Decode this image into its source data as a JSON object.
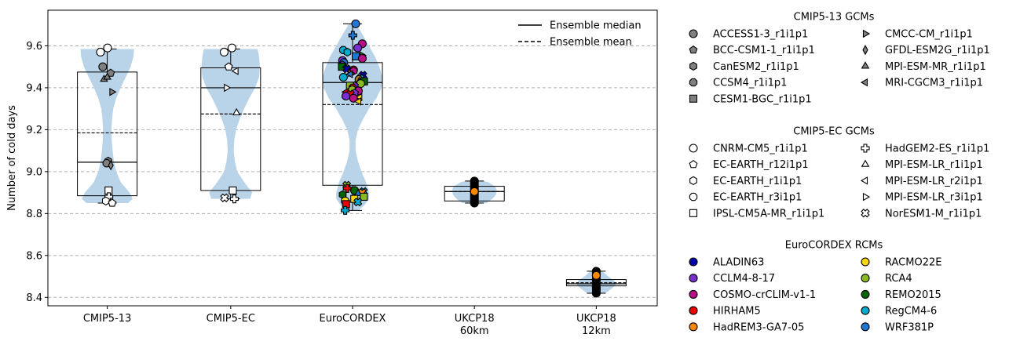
{
  "chart_data": {
    "type": "violin_box_scatter",
    "ylabel": "Number of cold days",
    "ylim": [
      8.36,
      9.77
    ],
    "yticks": [
      8.4,
      8.6,
      8.8,
      9.0,
      9.2,
      9.4,
      9.6
    ],
    "ytick_labels": [
      "8.4",
      "8.6",
      "8.8",
      "9.0",
      "9.2",
      "9.4",
      "9.6"
    ],
    "grid": "y-dashed",
    "categories": [
      "CMIP5-13",
      "CMIP5-EC",
      "EuroCORDEX",
      "UKCP18\n60km",
      "UKCP18\n12km"
    ],
    "violin_color": "#b9d4e8",
    "boxes": [
      {
        "whisker_low": 8.85,
        "q1": 8.885,
        "median": 9.045,
        "mean": 9.185,
        "q3": 9.475,
        "whisker_high": 9.585
      },
      {
        "whisker_low": 8.87,
        "q1": 8.91,
        "median": 9.4,
        "mean": 9.275,
        "q3": 9.495,
        "whisker_high": 9.585
      },
      {
        "whisker_low": 8.815,
        "q1": 8.935,
        "median": 9.425,
        "mean": 9.32,
        "q3": 9.52,
        "whisker_high": 9.705
      },
      {
        "whisker_low": 8.85,
        "q1": 8.86,
        "median": 8.905,
        "mean": 8.905,
        "q3": 8.93,
        "whisker_high": 8.955
      },
      {
        "whisker_low": 8.42,
        "q1": 8.455,
        "median": 8.465,
        "mean": 8.47,
        "q3": 8.485,
        "whisker_high": 8.525
      }
    ],
    "violins": [
      {
        "profile": [
          [
            8.85,
            0.7
          ],
          [
            8.87,
            0.85
          ],
          [
            8.9,
            0.75
          ],
          [
            8.95,
            0.45
          ],
          [
            9.0,
            0.3
          ],
          [
            9.05,
            0.22
          ],
          [
            9.1,
            0.18
          ],
          [
            9.15,
            0.15
          ],
          [
            9.2,
            0.14
          ],
          [
            9.25,
            0.16
          ],
          [
            9.3,
            0.2
          ],
          [
            9.35,
            0.3
          ],
          [
            9.4,
            0.45
          ],
          [
            9.45,
            0.62
          ],
          [
            9.5,
            0.78
          ],
          [
            9.55,
            0.88
          ],
          [
            9.585,
            0.9
          ]
        ]
      },
      {
        "profile": [
          [
            8.87,
            0.65
          ],
          [
            8.9,
            0.72
          ],
          [
            8.95,
            0.45
          ],
          [
            9.0,
            0.22
          ],
          [
            9.05,
            0.14
          ],
          [
            9.1,
            0.1
          ],
          [
            9.15,
            0.12
          ],
          [
            9.2,
            0.18
          ],
          [
            9.25,
            0.3
          ],
          [
            9.3,
            0.45
          ],
          [
            9.35,
            0.62
          ],
          [
            9.4,
            0.82
          ],
          [
            9.45,
            0.95
          ],
          [
            9.5,
            0.98
          ],
          [
            9.55,
            0.95
          ],
          [
            9.585,
            0.9
          ]
        ]
      },
      {
        "profile": [
          [
            8.815,
            0.2
          ],
          [
            8.84,
            0.4
          ],
          [
            8.87,
            0.55
          ],
          [
            8.9,
            0.55
          ],
          [
            8.95,
            0.45
          ],
          [
            9.0,
            0.3
          ],
          [
            9.05,
            0.18
          ],
          [
            9.1,
            0.1
          ],
          [
            9.15,
            0.1
          ],
          [
            9.2,
            0.18
          ],
          [
            9.25,
            0.35
          ],
          [
            9.3,
            0.55
          ],
          [
            9.35,
            0.8
          ],
          [
            9.4,
            0.97
          ],
          [
            9.45,
            1.0
          ],
          [
            9.5,
            0.9
          ],
          [
            9.55,
            0.75
          ],
          [
            9.6,
            0.55
          ],
          [
            9.65,
            0.35
          ],
          [
            9.705,
            0.12
          ]
        ]
      },
      {
        "profile": [
          [
            8.85,
            0.4
          ],
          [
            8.87,
            0.6
          ],
          [
            8.89,
            0.72
          ],
          [
            8.91,
            0.75
          ],
          [
            8.93,
            0.7
          ],
          [
            8.95,
            0.45
          ],
          [
            8.955,
            0.3
          ]
        ]
      },
      {
        "profile": [
          [
            8.42,
            0.3
          ],
          [
            8.44,
            0.5
          ],
          [
            8.46,
            0.65
          ],
          [
            8.48,
            0.6
          ],
          [
            8.5,
            0.4
          ],
          [
            8.525,
            0.2
          ]
        ]
      }
    ],
    "points": [
      [
        {
          "y": 9.5,
          "marker": "circle",
          "color": "#808080"
        },
        {
          "y": 9.47,
          "marker": "pentagon",
          "color": "#808080"
        },
        {
          "y": 9.05,
          "marker": "hexagon",
          "color": "#808080"
        },
        {
          "y": 9.04,
          "marker": "octagon",
          "color": "#808080"
        },
        {
          "y": 9.44,
          "marker": "triangle-up",
          "color": "#808080"
        },
        {
          "y": 9.38,
          "marker": "triangle-right",
          "color": "#808080"
        },
        {
          "y": 9.03,
          "marker": "diamond",
          "color": "#808080"
        },
        {
          "y": 9.45,
          "marker": "triangle-up",
          "color": "#808080"
        },
        {
          "y": 8.87,
          "marker": "triangle-left",
          "color": "#808080"
        },
        {
          "y": 9.59,
          "marker": "circle",
          "color": "#ffffff"
        },
        {
          "y": 9.57,
          "marker": "circle",
          "color": "#ffffff"
        },
        {
          "y": 8.91,
          "marker": "square",
          "color": "#ffffff"
        },
        {
          "y": 8.88,
          "marker": "plus",
          "color": "#ffffff"
        },
        {
          "y": 8.86,
          "marker": "hexagon",
          "color": "#ffffff"
        },
        {
          "y": 8.85,
          "marker": "pentagon",
          "color": "#ffffff"
        }
      ],
      [
        {
          "y": 9.59,
          "marker": "circle",
          "color": "#ffffff"
        },
        {
          "y": 9.57,
          "marker": "circle",
          "color": "#ffffff"
        },
        {
          "y": 9.5,
          "marker": "pentagon",
          "color": "#ffffff"
        },
        {
          "y": 9.48,
          "marker": "triangle-left",
          "color": "#ffffff"
        },
        {
          "y": 9.4,
          "marker": "triangle-right",
          "color": "#ffffff"
        },
        {
          "y": 9.28,
          "marker": "triangle-up",
          "color": "#ffffff"
        },
        {
          "y": 8.91,
          "marker": "square",
          "color": "#ffffff"
        },
        {
          "y": 8.87,
          "marker": "plus",
          "color": "#ffffff"
        },
        {
          "y": 8.875,
          "marker": "x",
          "color": "#ffffff"
        }
      ],
      [
        {
          "y": 9.705,
          "marker": "circle",
          "color": "#1f77d4"
        },
        {
          "y": 9.65,
          "marker": "plus",
          "color": "#1f77d4"
        },
        {
          "y": 9.61,
          "marker": "circle",
          "color": "#bb1188"
        },
        {
          "y": 9.59,
          "marker": "circle",
          "color": "#7a2fd0"
        },
        {
          "y": 9.58,
          "marker": "octagon",
          "color": "#00aacc"
        },
        {
          "y": 9.57,
          "marker": "hexagon",
          "color": "#00aacc"
        },
        {
          "y": 9.555,
          "marker": "triangle-right",
          "color": "#00a000"
        },
        {
          "y": 9.55,
          "marker": "square",
          "color": "#1f77d4"
        },
        {
          "y": 9.54,
          "marker": "circle",
          "color": "#bb1188"
        },
        {
          "y": 9.53,
          "marker": "circle",
          "color": "#7a2fd0"
        },
        {
          "y": 9.52,
          "marker": "circle",
          "color": "#1f77d4"
        },
        {
          "y": 9.51,
          "marker": "pentagon",
          "color": "#7a2fd0"
        },
        {
          "y": 9.5,
          "marker": "square",
          "color": "#006400"
        },
        {
          "y": 9.49,
          "marker": "x",
          "color": "#0000aa"
        },
        {
          "y": 9.485,
          "marker": "circle",
          "color": "#ee0000"
        },
        {
          "y": 9.48,
          "marker": "hexagon",
          "color": "#bb1188"
        },
        {
          "y": 9.47,
          "marker": "triangle-right",
          "color": "#ff8800"
        },
        {
          "y": 9.465,
          "marker": "triangle-left",
          "color": "#1f77d4"
        },
        {
          "y": 9.46,
          "marker": "x",
          "color": "#0000aa"
        },
        {
          "y": 9.45,
          "marker": "circle",
          "color": "#00aacc"
        },
        {
          "y": 9.445,
          "marker": "x",
          "color": "#00aacc"
        },
        {
          "y": 9.44,
          "marker": "octagon",
          "color": "#aa7722"
        },
        {
          "y": 9.43,
          "marker": "square",
          "color": "#006400"
        },
        {
          "y": 9.43,
          "marker": "triangle-up",
          "color": "#00a000"
        },
        {
          "y": 9.42,
          "marker": "circle",
          "color": "#88bb22"
        },
        {
          "y": 9.41,
          "marker": "pentagon",
          "color": "#7a2fd0"
        },
        {
          "y": 9.41,
          "marker": "square",
          "color": "#88bb22"
        },
        {
          "y": 9.4,
          "marker": "octagon",
          "color": "#ee0000"
        },
        {
          "y": 9.39,
          "marker": "circle",
          "color": "#88bb22"
        },
        {
          "y": 9.385,
          "marker": "circle",
          "color": "#bb1188"
        },
        {
          "y": 9.38,
          "marker": "triangle-left",
          "color": "#ee0000"
        },
        {
          "y": 9.375,
          "marker": "pentagon",
          "color": "#7a2fd0"
        },
        {
          "y": 9.37,
          "marker": "x",
          "color": "#ee0000"
        },
        {
          "y": 9.36,
          "marker": "circle",
          "color": "#7a2fd0"
        },
        {
          "y": 9.355,
          "marker": "triangle-left",
          "color": "#ffd700"
        },
        {
          "y": 9.35,
          "marker": "circle",
          "color": "#bb1188"
        },
        {
          "y": 9.335,
          "marker": "triangle-left",
          "color": "#ffd700"
        },
        {
          "y": 8.935,
          "marker": "x",
          "color": "#88bb22"
        },
        {
          "y": 8.92,
          "marker": "plus",
          "color": "#ee0000"
        },
        {
          "y": 8.91,
          "marker": "circle",
          "color": "#006400"
        },
        {
          "y": 8.905,
          "marker": "x",
          "color": "#00aacc"
        },
        {
          "y": 8.9,
          "marker": "x",
          "color": "#ff8800"
        },
        {
          "y": 8.895,
          "marker": "triangle-up",
          "color": "#1f77d4"
        },
        {
          "y": 8.89,
          "marker": "hexagon",
          "color": "#006400"
        },
        {
          "y": 8.88,
          "marker": "square",
          "color": "#88bb22"
        },
        {
          "y": 8.87,
          "marker": "square",
          "color": "#ffd700"
        },
        {
          "y": 8.86,
          "marker": "circle",
          "color": "#ffd700"
        },
        {
          "y": 8.855,
          "marker": "x",
          "color": "#00aacc"
        },
        {
          "y": 8.845,
          "marker": "square",
          "color": "#ee0000"
        },
        {
          "y": 8.815,
          "marker": "plus",
          "color": "#00aacc"
        }
      ],
      [
        {
          "y": 8.85,
          "marker": "circle",
          "color": "#000000"
        },
        {
          "y": 8.86,
          "marker": "circle",
          "color": "#000000"
        },
        {
          "y": 8.87,
          "marker": "circle",
          "color": "#000000"
        },
        {
          "y": 8.88,
          "marker": "circle",
          "color": "#000000"
        },
        {
          "y": 8.89,
          "marker": "circle",
          "color": "#000000"
        },
        {
          "y": 8.9,
          "marker": "circle",
          "color": "#000000"
        },
        {
          "y": 8.915,
          "marker": "circle",
          "color": "#000000"
        },
        {
          "y": 8.925,
          "marker": "circle",
          "color": "#000000"
        },
        {
          "y": 8.935,
          "marker": "circle",
          "color": "#000000"
        },
        {
          "y": 8.945,
          "marker": "circle",
          "color": "#000000"
        },
        {
          "y": 8.955,
          "marker": "circle",
          "color": "#000000"
        },
        {
          "y": 8.905,
          "marker": "circle",
          "color": "#ff8800"
        }
      ],
      [
        {
          "y": 8.42,
          "marker": "circle",
          "color": "#000000"
        },
        {
          "y": 8.43,
          "marker": "circle",
          "color": "#000000"
        },
        {
          "y": 8.44,
          "marker": "circle",
          "color": "#000000"
        },
        {
          "y": 8.45,
          "marker": "circle",
          "color": "#000000"
        },
        {
          "y": 8.465,
          "marker": "circle",
          "color": "#000000"
        },
        {
          "y": 8.48,
          "marker": "circle",
          "color": "#000000"
        },
        {
          "y": 8.49,
          "marker": "circle",
          "color": "#000000"
        },
        {
          "y": 8.505,
          "marker": "circle",
          "color": "#000000"
        },
        {
          "y": 8.515,
          "marker": "circle",
          "color": "#000000"
        },
        {
          "y": 8.525,
          "marker": "circle",
          "color": "#000000"
        },
        {
          "y": 8.505,
          "marker": "circle",
          "color": "#ff8800"
        }
      ]
    ],
    "inner_legend": {
      "placement": "top-right",
      "entries": [
        {
          "label": "Ensemble median",
          "style": "solid"
        },
        {
          "label": "Ensemble mean",
          "style": "dashed"
        }
      ]
    },
    "legend_groups": [
      {
        "title": "CMIP5-13 GCMs",
        "entries": [
          {
            "label": "ACCESS1-3_r1i1p1",
            "marker": "circle",
            "color": "#808080"
          },
          {
            "label": "CMCC-CM_r1i1p1",
            "marker": "triangle-right",
            "color": "#808080"
          },
          {
            "label": "BCC-CSM1-1_r1i1p1",
            "marker": "pentagon",
            "color": "#808080"
          },
          {
            "label": "GFDL-ESM2G_r1i1p1",
            "marker": "diamond",
            "color": "#808080"
          },
          {
            "label": "CanESM2_r1i1p1",
            "marker": "hexagon",
            "color": "#808080"
          },
          {
            "label": "MPI-ESM-MR_r1i1p1",
            "marker": "triangle-up",
            "color": "#808080"
          },
          {
            "label": "CCSM4_r1i1p1",
            "marker": "octagon",
            "color": "#808080"
          },
          {
            "label": "MRI-CGCM3_r1i1p1",
            "marker": "triangle-left",
            "color": "#808080"
          },
          {
            "label": "CESM1-BGC_r1i1p1",
            "marker": "square",
            "color": "#808080"
          }
        ]
      },
      {
        "title": "CMIP5-EC GCMs",
        "entries": [
          {
            "label": "CNRM-CM5_r1i1p1",
            "marker": "circle",
            "color": "#ffffff"
          },
          {
            "label": "HadGEM2-ES_r1i1p1",
            "marker": "plus",
            "color": "#ffffff"
          },
          {
            "label": "EC-EARTH_r12i1p1",
            "marker": "pentagon",
            "color": "#ffffff"
          },
          {
            "label": "MPI-ESM-LR_r1i1p1",
            "marker": "triangle-up",
            "color": "#ffffff"
          },
          {
            "label": "EC-EARTH_r1i1p1",
            "marker": "hexagon",
            "color": "#ffffff"
          },
          {
            "label": "MPI-ESM-LR_r2i1p1",
            "marker": "triangle-left",
            "color": "#ffffff"
          },
          {
            "label": "EC-EARTH_r3i1p1",
            "marker": "octagon",
            "color": "#ffffff"
          },
          {
            "label": "MPI-ESM-LR_r3i1p1",
            "marker": "triangle-right",
            "color": "#ffffff"
          },
          {
            "label": "IPSL-CM5A-MR_r1i1p1",
            "marker": "square",
            "color": "#ffffff"
          },
          {
            "label": "NorESM1-M_r1i1p1",
            "marker": "x",
            "color": "#ffffff"
          }
        ]
      },
      {
        "title": "EuroCORDEX RCMs",
        "entries": [
          {
            "label": "ALADIN63",
            "marker": "circle",
            "color": "#0000aa"
          },
          {
            "label": "RACMO22E",
            "marker": "circle",
            "color": "#ffd700"
          },
          {
            "label": "CCLM4-8-17",
            "marker": "circle",
            "color": "#7a2fd0"
          },
          {
            "label": "RCA4",
            "marker": "circle",
            "color": "#88bb22"
          },
          {
            "label": "COSMO-crCLIM-v1-1",
            "marker": "circle",
            "color": "#bb1188"
          },
          {
            "label": "REMO2015",
            "marker": "circle",
            "color": "#006400"
          },
          {
            "label": "HIRHAM5",
            "marker": "circle",
            "color": "#ee0000"
          },
          {
            "label": "RegCM4-6",
            "marker": "circle",
            "color": "#00aacc"
          },
          {
            "label": "HadREM3-GA7-05",
            "marker": "circle",
            "color": "#ff8800"
          },
          {
            "label": "WRF381P",
            "marker": "circle",
            "color": "#1f77d4"
          }
        ]
      }
    ]
  }
}
